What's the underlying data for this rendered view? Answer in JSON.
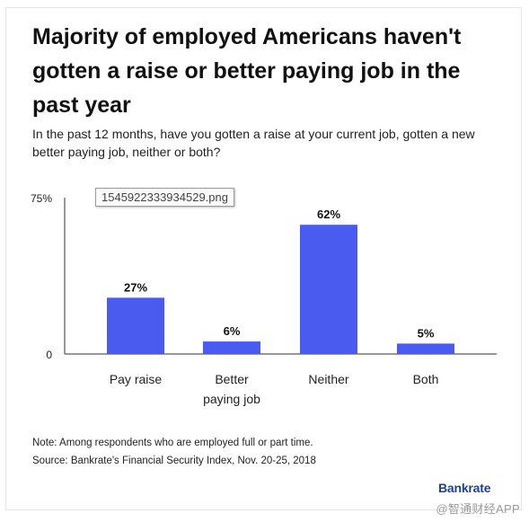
{
  "header": {
    "title": "Majority of employed Americans haven't gotten a raise or better paying job in the past year",
    "subtitle": "In the past 12 months, have you gotten a raise at your current job, gotten a new better paying job, neither or both?"
  },
  "tooltip": {
    "text": "1545922333934529.png"
  },
  "chart_data": {
    "type": "bar",
    "categories": [
      "Pay raise",
      "Better paying job",
      "Neither",
      "Both"
    ],
    "category_lines": [
      [
        "Pay raise"
      ],
      [
        "Better",
        "paying job"
      ],
      [
        "Neither"
      ],
      [
        "Both"
      ]
    ],
    "values": [
      27,
      6,
      62,
      5
    ],
    "data_labels": [
      "27%",
      "6%",
      "62%",
      "5%"
    ],
    "ylim": [
      0,
      75
    ],
    "yticks": [
      0,
      75
    ],
    "ytick_labels": [
      "0",
      "75%"
    ],
    "grid": false,
    "bar_color": "#4a5cf0"
  },
  "footer": {
    "note": "Note: Among respondents who are employed full or part time.",
    "source": "Source: Bankrate's Financial Security Index, Nov. 20-25, 2018",
    "brand": "Bankrate",
    "watermark": "@智通财经APP"
  }
}
